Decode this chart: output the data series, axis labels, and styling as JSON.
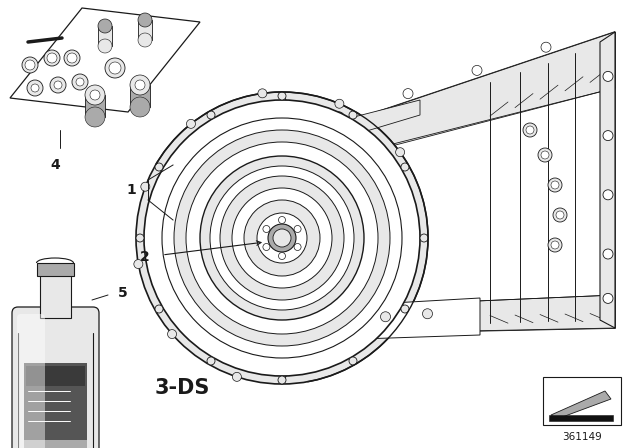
{
  "background_color": "#ffffff",
  "line_color": "#1a1a1a",
  "gray_light": "#e8e8e8",
  "gray_mid": "#aaaaaa",
  "gray_dark": "#555555",
  "gray_label": "#333333",
  "label_1": "1",
  "label_2": "2",
  "label_3ds": "3-DS",
  "label_4": "4",
  "label_5": "5",
  "part_number": "361149",
  "fig_width": 6.4,
  "fig_height": 4.48,
  "dpi": 100
}
